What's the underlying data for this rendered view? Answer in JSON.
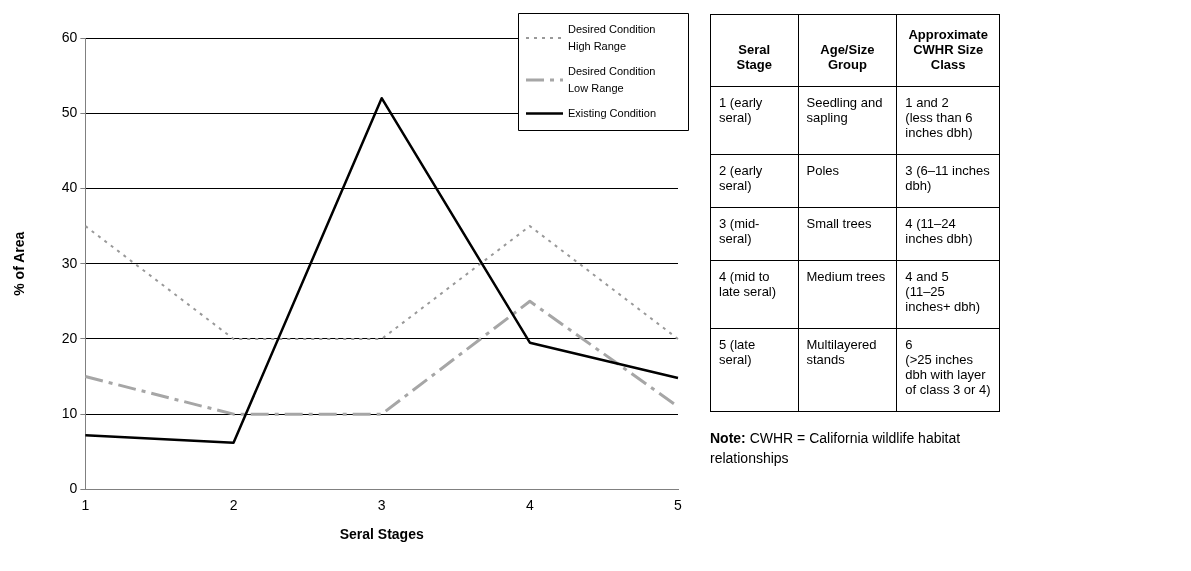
{
  "chart_data": [
    {
      "type": "line",
      "xlabel": "Seral Stages",
      "ylabel": "% of Area",
      "categories": [
        "1",
        "2",
        "3",
        "4",
        "5"
      ],
      "series": [
        {
          "name": "Desired Condition High Range",
          "color": "#999999",
          "line_style": "dotted",
          "values": [
            35,
            20,
            20,
            35,
            20
          ]
        },
        {
          "name": "Desired Condition Low Range",
          "color": "#a6a6a6",
          "line_style": "dashed",
          "values": [
            15,
            10,
            10,
            25,
            11
          ]
        },
        {
          "name": "Existing Condition",
          "color": "#000000",
          "line_style": "solid",
          "values": [
            7.2,
            6.2,
            52,
            19.5,
            14.8
          ]
        }
      ],
      "ylim": [
        0,
        60
      ],
      "yticks": [
        0,
        10,
        20,
        30,
        40,
        50,
        60
      ],
      "grid": "y",
      "legend": "top right",
      "marker": "none"
    },
    {
      "type": "other",
      "categories": [
        "Seral Stage",
        "Age/Size Group",
        "Approximate CWHR Size Class"
      ],
      "cell_labels": [
        [
          "1 (early seral)",
          "Seedling and sapling",
          "1 and 2\n(less than 6 inches dbh)"
        ],
        [
          "2 (early seral)",
          "Poles",
          "3 (6–11 inches dbh)"
        ],
        [
          "3 (mid-seral)",
          "Small trees",
          "4 (11–24 inches dbh)"
        ],
        [
          "4 (mid to late seral)",
          "Medium trees",
          "4 and 5\n(11–25 inches+ dbh)"
        ],
        [
          "5 (late seral)",
          "Multilayered stands",
          "6\n(>25 inches dbh with layer of class 3 or 4)"
        ]
      ],
      "annotations": [
        "Note:  CWHR = California wildlife habitat relationships"
      ]
    }
  ]
}
